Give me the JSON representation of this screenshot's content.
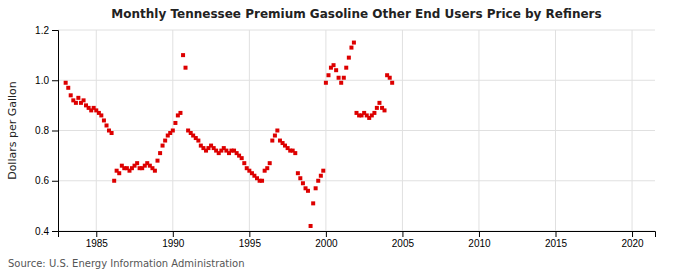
{
  "chart_data": {
    "type": "scatter",
    "title": "Monthly Tennessee Premium Gasoline Other End Users Price by Refiners",
    "ylabel": "Dollars per Gallon",
    "source": "Source: U.S. Energy Information Administration",
    "color": "#dd0000",
    "marker": "square",
    "grid": true,
    "xlim": [
      1982.5,
      2021.5
    ],
    "ylim": [
      0.4,
      1.2
    ],
    "xticks": [
      1985,
      1990,
      1995,
      2000,
      2005,
      2010,
      2015,
      2020
    ],
    "yticks": [
      0.4,
      0.6,
      0.8,
      {
        "value": 1.0,
        "label": "1.0"
      },
      1.2
    ],
    "x": [
      1983.0,
      1983.17,
      1983.33,
      1983.5,
      1983.67,
      1983.83,
      1984.0,
      1984.17,
      1984.33,
      1984.5,
      1984.67,
      1984.83,
      1985.0,
      1985.17,
      1985.33,
      1985.5,
      1985.67,
      1985.83,
      1986.0,
      1986.17,
      1986.33,
      1986.5,
      1986.67,
      1986.83,
      1987.0,
      1987.17,
      1987.33,
      1987.5,
      1987.67,
      1987.83,
      1988.0,
      1988.17,
      1988.33,
      1988.5,
      1988.67,
      1988.83,
      1989.0,
      1989.17,
      1989.33,
      1989.5,
      1989.67,
      1989.83,
      1990.0,
      1990.17,
      1990.33,
      1990.5,
      1990.67,
      1990.83,
      1991.0,
      1991.17,
      1991.33,
      1991.5,
      1991.67,
      1991.83,
      1992.0,
      1992.17,
      1992.33,
      1992.5,
      1992.67,
      1992.83,
      1993.0,
      1993.17,
      1993.33,
      1993.5,
      1993.67,
      1993.83,
      1994.0,
      1994.17,
      1994.33,
      1994.5,
      1994.67,
      1994.83,
      1995.0,
      1995.17,
      1995.33,
      1995.5,
      1995.67,
      1995.83,
      1996.0,
      1996.17,
      1996.33,
      1996.5,
      1996.67,
      1996.83,
      1997.0,
      1997.17,
      1997.33,
      1997.5,
      1997.67,
      1997.83,
      1998.0,
      1998.17,
      1998.33,
      1998.5,
      1998.67,
      1998.83,
      1999.0,
      1999.17,
      1999.33,
      1999.5,
      1999.67,
      1999.83,
      2000.0,
      2000.17,
      2000.33,
      2000.5,
      2000.67,
      2000.83,
      2001.0,
      2001.17,
      2001.33,
      2001.5,
      2001.67,
      2001.83,
      2002.0,
      2002.17,
      2002.33,
      2002.5,
      2002.67,
      2002.83,
      2003.0,
      2003.17,
      2003.33,
      2003.5,
      2003.67,
      2003.83,
      2004.0,
      2004.17,
      2004.33
    ],
    "values": [
      0.99,
      0.97,
      0.94,
      0.92,
      0.91,
      0.93,
      0.91,
      0.92,
      0.9,
      0.89,
      0.88,
      0.89,
      0.88,
      0.87,
      0.86,
      0.84,
      0.82,
      0.8,
      0.79,
      0.6,
      0.64,
      0.63,
      0.66,
      0.65,
      0.65,
      0.64,
      0.65,
      0.66,
      0.67,
      0.65,
      0.65,
      0.66,
      0.67,
      0.66,
      0.65,
      0.64,
      0.68,
      0.71,
      0.74,
      0.76,
      0.78,
      0.79,
      0.8,
      0.83,
      0.86,
      0.87,
      1.1,
      1.05,
      0.8,
      0.79,
      0.78,
      0.77,
      0.76,
      0.74,
      0.73,
      0.72,
      0.73,
      0.74,
      0.73,
      0.72,
      0.71,
      0.72,
      0.73,
      0.72,
      0.71,
      0.72,
      0.72,
      0.71,
      0.7,
      0.69,
      0.67,
      0.65,
      0.64,
      0.63,
      0.62,
      0.61,
      0.6,
      0.6,
      0.64,
      0.65,
      0.67,
      0.76,
      0.78,
      0.8,
      0.76,
      0.75,
      0.74,
      0.73,
      0.72,
      0.72,
      0.71,
      0.63,
      0.61,
      0.59,
      0.57,
      0.56,
      0.42,
      0.51,
      0.57,
      0.6,
      0.62,
      0.64,
      0.99,
      1.02,
      1.05,
      1.06,
      1.04,
      1.01,
      0.99,
      1.01,
      1.05,
      1.09,
      1.13,
      1.15,
      0.87,
      0.86,
      0.86,
      0.87,
      0.86,
      0.85,
      0.86,
      0.87,
      0.89,
      0.91,
      0.89,
      0.88,
      1.02,
      1.01,
      0.99
    ]
  }
}
